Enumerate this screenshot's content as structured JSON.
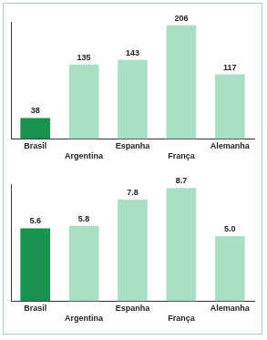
{
  "chart_data": [
    {
      "type": "bar",
      "categories": [
        "Brasil",
        "Argentina",
        "Espanha",
        "França",
        "Alemanha"
      ],
      "values": [
        38,
        135,
        143,
        206,
        117
      ],
      "colors": [
        "#17924f",
        "#a9dfc4",
        "#a9dfc4",
        "#a9dfc4",
        "#a9dfc4"
      ],
      "ylim": [
        0,
        212
      ],
      "grid": false,
      "data_labels": true,
      "tick_labels": "x"
    },
    {
      "type": "bar",
      "categories": [
        "Brasil",
        "Argentina",
        "Espanha",
        "França",
        "Alemanha"
      ],
      "values": [
        5.6,
        5.8,
        7.8,
        8.7,
        5.0
      ],
      "value_labels": [
        "5.6",
        "5.8",
        "7.8",
        "8.7",
        "5.0"
      ],
      "colors": [
        "#17924f",
        "#a9dfc4",
        "#a9dfc4",
        "#a9dfc4",
        "#a9dfc4"
      ],
      "ylim": [
        0,
        9
      ],
      "grid": false,
      "data_labels": true,
      "tick_labels": "x"
    }
  ]
}
